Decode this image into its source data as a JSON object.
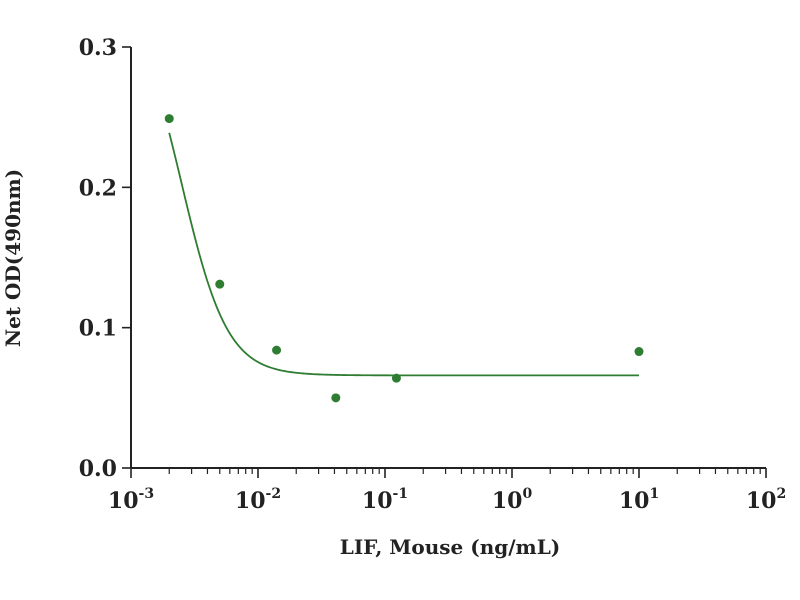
{
  "chart_data": {
    "type": "scatter",
    "title": "",
    "xlabel": "LIF, Mouse (ng/mL)",
    "ylabel": "Net OD(490nm)",
    "x_scale": "log",
    "xlim": [
      0.001,
      100
    ],
    "ylim": [
      0.0,
      0.3
    ],
    "x_ticks": [
      {
        "value": 0.001,
        "base": "10",
        "exp": "-3"
      },
      {
        "value": 0.01,
        "base": "10",
        "exp": "-2"
      },
      {
        "value": 0.1,
        "base": "10",
        "exp": "-1"
      },
      {
        "value": 1,
        "base": "10",
        "exp": "0"
      },
      {
        "value": 10,
        "base": "10",
        "exp": "1"
      },
      {
        "value": 100,
        "base": "10",
        "exp": "2"
      }
    ],
    "y_ticks": [
      {
        "value": 0.0,
        "label": "0.0"
      },
      {
        "value": 0.1,
        "label": "0.1"
      },
      {
        "value": 0.2,
        "label": "0.2"
      },
      {
        "value": 0.3,
        "label": "0.3"
      }
    ],
    "grid": false,
    "legend": "none",
    "series": [
      {
        "points": [
          {
            "x": 0.002,
            "y": 0.249
          },
          {
            "x": 0.005,
            "y": 0.131
          },
          {
            "x": 0.014,
            "y": 0.084
          },
          {
            "x": 0.041,
            "y": 0.05
          },
          {
            "x": 0.123,
            "y": 0.064
          },
          {
            "x": 10,
            "y": 0.083
          }
        ],
        "fit_curve": {
          "model": "four-parameter logistic",
          "top": 0.34,
          "bottom": 0.066,
          "ec50": 0.0025,
          "hill": -2.4,
          "x_range": [
            0.002,
            10
          ]
        },
        "color": "#2e7d32"
      }
    ]
  }
}
